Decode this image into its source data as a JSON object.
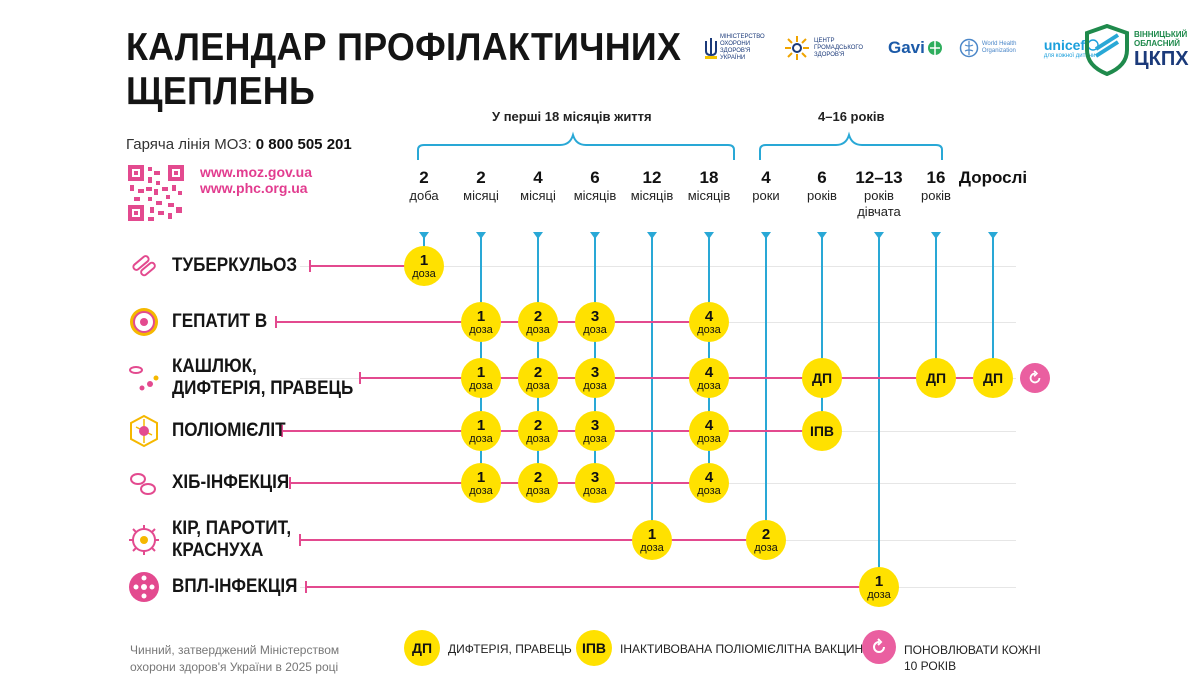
{
  "title_line1": "КАЛЕНДАР ПРОФІЛАКТИЧНИХ",
  "title_line2": "ЩЕПЛЕНЬ",
  "hotline_label": "Гаряча лінія МОЗ:",
  "hotline_number": "0 800 505 201",
  "urls": [
    "www.moz.gov.ua",
    "www.phc.org.ua"
  ],
  "partners": {
    "moz": "МІНІСТЕРСТВО ОХОРОНИ ЗДОРОВ'Я УКРАЇНИ",
    "phc": "ЦЕНТР ГРОМАДСЬКОГО ЗДОРОВ'Я",
    "gavi": "Gavi",
    "who": "World Health Organization",
    "unicef": "unicef",
    "unicef_sub": "для кожної дитини"
  },
  "brand": {
    "line1": "ВІННИЦЬКИЙ",
    "line2": "ОБЛАСНИЙ",
    "name": "ЦКПХ"
  },
  "age_groups": {
    "first": "У перші 18 місяців життя",
    "second": "4–16 років"
  },
  "columns": [
    {
      "n": "2",
      "u": "доба",
      "u2": ""
    },
    {
      "n": "2",
      "u": "місяці",
      "u2": ""
    },
    {
      "n": "4",
      "u": "місяці",
      "u2": ""
    },
    {
      "n": "6",
      "u": "місяців",
      "u2": ""
    },
    {
      "n": "12",
      "u": "місяців",
      "u2": ""
    },
    {
      "n": "18",
      "u": "місяців",
      "u2": ""
    },
    {
      "n": "4",
      "u": "роки",
      "u2": ""
    },
    {
      "n": "6",
      "u": "років",
      "u2": ""
    },
    {
      "n": "12–13",
      "u": "років",
      "u2": "дівчата"
    },
    {
      "n": "16",
      "u": "років",
      "u2": ""
    },
    {
      "n": "Дорослі",
      "u": "",
      "u2": ""
    }
  ],
  "diseases": [
    {
      "line1": "ТУБЕРКУЛЬОЗ",
      "line2": "",
      "icon": "tuberculosis-icon"
    },
    {
      "line1": "ГЕПАТИТ В",
      "line2": "",
      "icon": "hepatitis-icon"
    },
    {
      "line1": "КАШЛЮК,",
      "line2": "ДИФТЕРІЯ, ПРАВЕЦЬ",
      "icon": "pertussis-icon"
    },
    {
      "line1": "ПОЛІОМІЄЛІТ",
      "line2": "",
      "icon": "polio-icon"
    },
    {
      "line1": "ХІБ-ІНФЕКЦІЯ",
      "line2": "",
      "icon": "hib-icon"
    },
    {
      "line1": "КІР, ПАРОТИТ,",
      "line2": "КРАСНУХА",
      "icon": "measles-icon"
    },
    {
      "line1": "ВПЛ-ІНФЕКЦІЯ",
      "line2": "",
      "icon": "hpv-icon"
    }
  ],
  "dose_word": "доза",
  "doses": [
    {
      "row": 0,
      "col": 0,
      "label": "1"
    },
    {
      "row": 1,
      "col": 1,
      "label": "1"
    },
    {
      "row": 1,
      "col": 2,
      "label": "2"
    },
    {
      "row": 1,
      "col": 3,
      "label": "3"
    },
    {
      "row": 1,
      "col": 5,
      "label": "4"
    },
    {
      "row": 2,
      "col": 1,
      "label": "1"
    },
    {
      "row": 2,
      "col": 2,
      "label": "2"
    },
    {
      "row": 2,
      "col": 3,
      "label": "3"
    },
    {
      "row": 2,
      "col": 5,
      "label": "4"
    },
    {
      "row": 2,
      "col": 7,
      "label": "ДП"
    },
    {
      "row": 2,
      "col": 9,
      "label": "ДП"
    },
    {
      "row": 2,
      "col": 10,
      "label": "ДП"
    },
    {
      "row": 3,
      "col": 1,
      "label": "1"
    },
    {
      "row": 3,
      "col": 2,
      "label": "2"
    },
    {
      "row": 3,
      "col": 3,
      "label": "3"
    },
    {
      "row": 3,
      "col": 5,
      "label": "4"
    },
    {
      "row": 3,
      "col": 7,
      "label": "ІПВ"
    },
    {
      "row": 4,
      "col": 1,
      "label": "1"
    },
    {
      "row": 4,
      "col": 2,
      "label": "2"
    },
    {
      "row": 4,
      "col": 3,
      "label": "3"
    },
    {
      "row": 4,
      "col": 5,
      "label": "4"
    },
    {
      "row": 5,
      "col": 4,
      "label": "1"
    },
    {
      "row": 5,
      "col": 6,
      "label": "2"
    },
    {
      "row": 6,
      "col": 8,
      "label": "1"
    }
  ],
  "legend": [
    {
      "abbr": "ДП",
      "text": "ДИФТЕРІЯ, ПРАВЕЦЬ",
      "text2": ""
    },
    {
      "abbr": "ІПВ",
      "text": "ІНАКТИВОВАНА ПОЛІОМІЄЛІТНА ВАКЦИНА",
      "text2": ""
    },
    {
      "abbr": "",
      "text": "ПОНОВЛЮВАТИ КОЖНІ",
      "text2": "10 РОКІВ"
    }
  ],
  "footer_line1": "Чинний, затверджений Міністерством",
  "footer_line2": "охорони здоров'я України в 2025 році",
  "colors": {
    "pink": "#e34a8f",
    "blue": "#29a8d6",
    "yellow": "#ffe100",
    "brand": "#1f8a4c"
  }
}
